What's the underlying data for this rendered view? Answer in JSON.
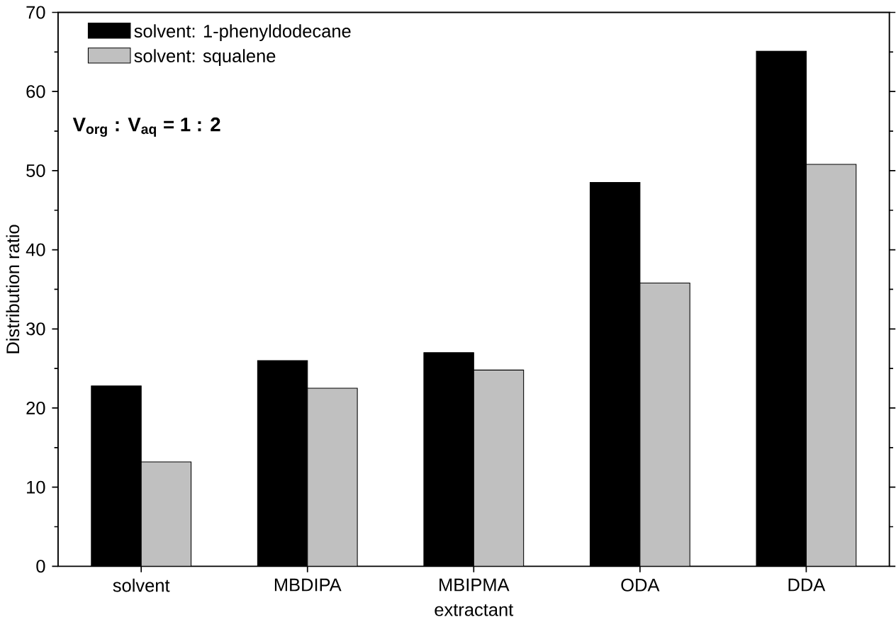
{
  "chart_data": {
    "type": "bar",
    "xlabel": "extractant",
    "ylabel": "Distribution ratio",
    "categories": [
      "solvent",
      "MBDIPA",
      "MBIPMA",
      "ODA",
      "DDA"
    ],
    "series": [
      {
        "name": "solvent: 1-phenyldodecane",
        "color": "#000000",
        "values": [
          22.8,
          26.0,
          27.0,
          48.5,
          65.1
        ]
      },
      {
        "name": "solvent: squalene",
        "color": "#c0c0c0",
        "values": [
          13.2,
          22.5,
          24.8,
          35.8,
          50.8
        ]
      }
    ],
    "ylim": [
      0,
      70
    ],
    "yticks": [
      0,
      10,
      20,
      30,
      40,
      50,
      60,
      70
    ],
    "legend": "top left",
    "annotations": [
      "V$_{org}$ : V$_{aq}$ = 1 : 2"
    ]
  }
}
